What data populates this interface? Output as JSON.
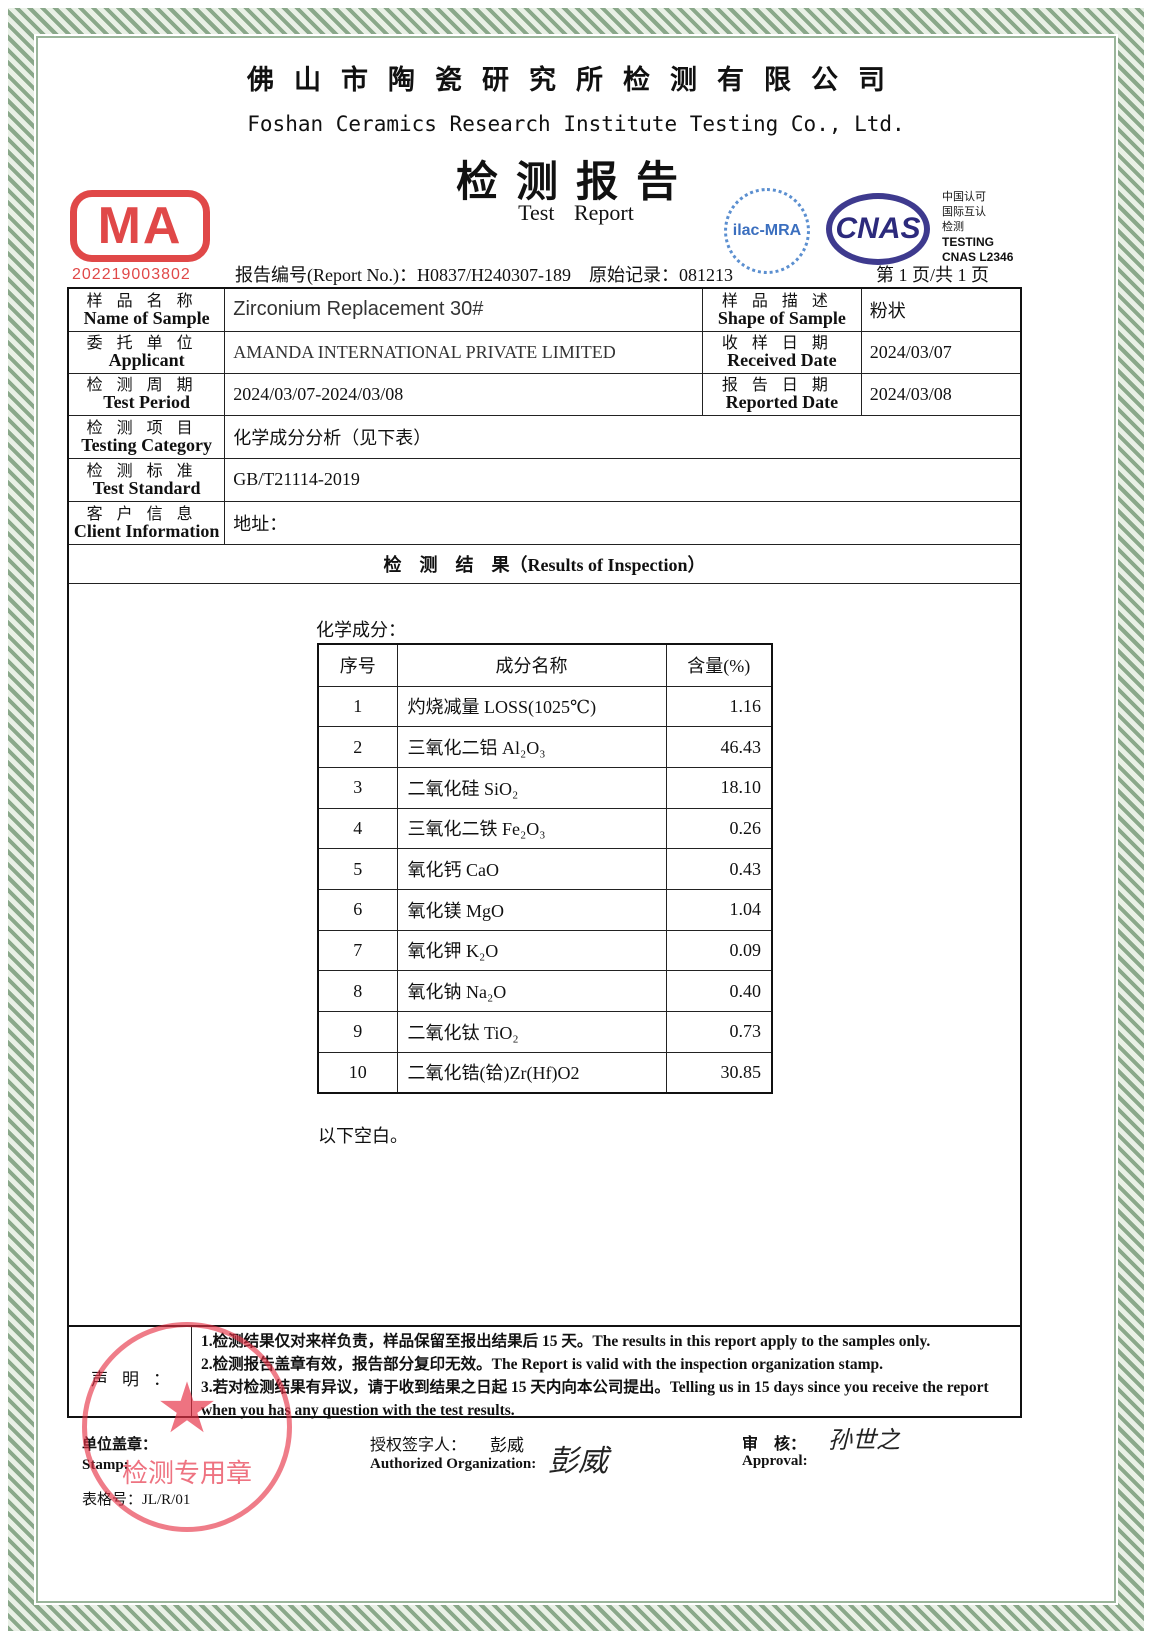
{
  "header": {
    "company_cn": "佛山市陶瓷研究所检测有限公司",
    "company_en": "Foshan Ceramics Research Institute Testing Co., Ltd.",
    "title_cn": "检测报告",
    "title_en": "Test Report",
    "ma_logo": "MA",
    "ma_number": "202219003802",
    "ilac_logo": "ilac-MRA",
    "cnas_logo": "CNAS",
    "cnas_side": [
      "中国认可",
      "国际互认",
      "检测",
      "TESTING",
      "CNAS L2346"
    ],
    "report_line": "报告编号(Report No.)：H0837/H240307-189　原始记录：081213",
    "page": "第 1 页/共 1 页"
  },
  "info": {
    "sample_name": {
      "cn": "样品名称",
      "en": "Name of Sample",
      "value": "Zirconium Replacement 30#"
    },
    "shape": {
      "cn": "样品描述",
      "en": "Shape of Sample",
      "value": "粉状"
    },
    "applicant": {
      "cn": "委托单位",
      "en": "Applicant",
      "value": "AMANDA INTERNATIONAL PRIVATE LIMITED"
    },
    "received": {
      "cn": "收样日期",
      "en": "Received Date",
      "value": "2024/03/07"
    },
    "period": {
      "cn": "检测周期",
      "en": "Test Period",
      "value": "2024/03/07-2024/03/08"
    },
    "reported": {
      "cn": "报告日期",
      "en": "Reported Date",
      "value": "2024/03/08"
    },
    "category": {
      "cn": "检测项目",
      "en": "Testing Category",
      "value": "化学成分分析（见下表）"
    },
    "standard": {
      "cn": "检测标准",
      "en": "Test Standard",
      "value": "GB/T21114-2019"
    },
    "client": {
      "cn": "客户信息",
      "en": "Client Information",
      "value": "地址："
    }
  },
  "results": {
    "heading": "检　测　结　果（Results of Inspection）",
    "chem_label": "化学成分：",
    "columns": [
      "序号",
      "成分名称",
      "含量(%)"
    ],
    "rows": [
      {
        "no": "1",
        "name": "灼烧减量 LOSS(1025℃)",
        "value": "1.16"
      },
      {
        "no": "2",
        "name": "三氧化二铝 Al₂O₃",
        "value": "46.43"
      },
      {
        "no": "3",
        "name": "二氧化硅 SiO₂",
        "value": "18.10"
      },
      {
        "no": "4",
        "name": "三氧化二铁 Fe₂O₃",
        "value": "0.26"
      },
      {
        "no": "5",
        "name": "氧化钙 CaO",
        "value": "0.43"
      },
      {
        "no": "6",
        "name": "氧化镁 MgO",
        "value": "1.04"
      },
      {
        "no": "7",
        "name": "氧化钾 K₂O",
        "value": "0.09"
      },
      {
        "no": "8",
        "name": "氧化钠 Na₂O",
        "value": "0.40"
      },
      {
        "no": "9",
        "name": "二氧化钛 TiO₂",
        "value": "0.73"
      },
      {
        "no": "10",
        "name": "二氧化锆(铪)Zr(Hf)O2",
        "value": "30.85"
      }
    ],
    "blank_note": "以下空白。"
  },
  "declaration": {
    "label": "声明：",
    "lines": [
      "1.检测结果仅对来样负责，样品保留至报出结果后 15 天。The results in this report apply to the samples only.",
      "2.检测报告盖章有效，报告部分复印无效。The Report is valid with the inspection organization stamp.",
      "3.若对检测结果有异议，请于收到结果之日起 15 天内向本公司提出。Telling us in 15 days since you receive the report when you has any question with the test results."
    ]
  },
  "footer": {
    "stamp_label": "单位盖章：",
    "stamp_label_en": "Stamp:",
    "signer_label": "授权签字人：",
    "signer_name": "彭威",
    "signer_label_en": "Authorized Organization:",
    "approval_label": "审　核：",
    "approval_label_en": "Approval:",
    "form_no": "表格号：JL/R/01",
    "stamp_text": "检测专用章",
    "signature": "彭威",
    "approval_signature": "孙世之"
  },
  "colors": {
    "stamp_red": "#e04848",
    "cnas_blue": "#3e3a8e",
    "border_green": "#8aa88a"
  }
}
